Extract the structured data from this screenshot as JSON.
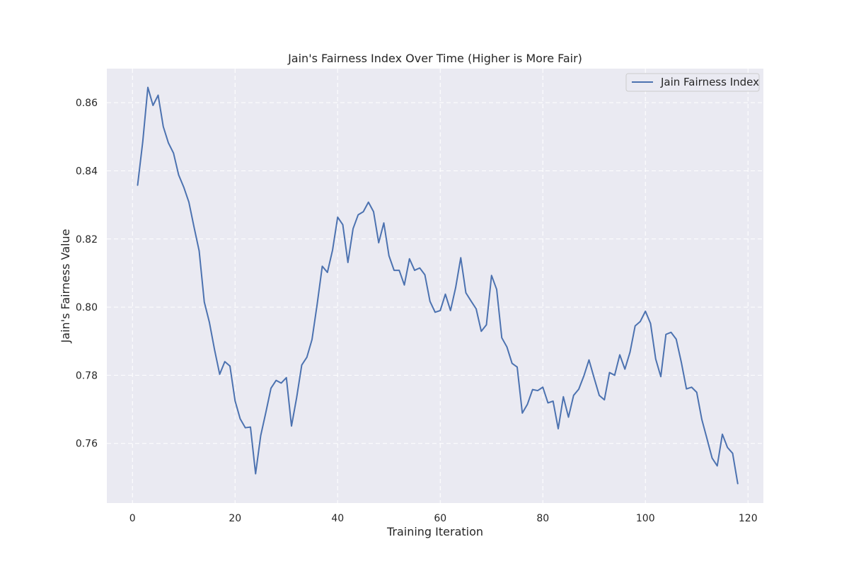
{
  "chart_data": {
    "type": "line",
    "title": "Jain's Fairness Index Over Time (Higher is More Fair)",
    "xlabel": "Training Iteration",
    "ylabel": "Jain's Fairness Value",
    "xlim": [
      -5,
      123
    ],
    "ylim": [
      0.7425,
      0.87
    ],
    "xticks": [
      0,
      20,
      40,
      60,
      80,
      100,
      120
    ],
    "yticks": [
      0.76,
      0.78,
      0.8,
      0.82,
      0.84,
      0.86
    ],
    "ytick_labels": [
      "0.76",
      "0.78",
      "0.80",
      "0.82",
      "0.84",
      "0.86"
    ],
    "grid": true,
    "legend_position": "top-right",
    "series": [
      {
        "name": "Jain Fairness Index",
        "color": "#4c72b0",
        "x": [
          1,
          2,
          3,
          4,
          5,
          6,
          7,
          8,
          9,
          10,
          11,
          12,
          13,
          14,
          15,
          16,
          17,
          18,
          19,
          20,
          21,
          22,
          23,
          24,
          25,
          26,
          27,
          28,
          29,
          30,
          31,
          32,
          33,
          34,
          35,
          36,
          37,
          38,
          39,
          40,
          41,
          42,
          43,
          44,
          45,
          46,
          47,
          48,
          49,
          50,
          51,
          52,
          53,
          54,
          55,
          56,
          57,
          58,
          59,
          60,
          61,
          62,
          63,
          64,
          65,
          66,
          67,
          68,
          69,
          70,
          71,
          72,
          73,
          74,
          75,
          76,
          77,
          78,
          79,
          80,
          81,
          82,
          83,
          84,
          85,
          86,
          87,
          88,
          89,
          90,
          91,
          92,
          93,
          94,
          95,
          96,
          97,
          98,
          99,
          100,
          101,
          102,
          103,
          104,
          105,
          106,
          107,
          108,
          109,
          110,
          111,
          112,
          113,
          114,
          115,
          116,
          117,
          118
        ],
        "y": [
          0.8358,
          0.8485,
          0.8645,
          0.8592,
          0.8622,
          0.853,
          0.8482,
          0.8452,
          0.8388,
          0.8352,
          0.8308,
          0.8235,
          0.8165,
          0.8015,
          0.7955,
          0.7875,
          0.7803,
          0.784,
          0.7827,
          0.7725,
          0.7672,
          0.7646,
          0.7648,
          0.7511,
          0.7623,
          0.7691,
          0.7762,
          0.7785,
          0.7777,
          0.7793,
          0.7651,
          0.7734,
          0.783,
          0.7853,
          0.7905,
          0.8008,
          0.812,
          0.8102,
          0.8167,
          0.8264,
          0.8242,
          0.8131,
          0.823,
          0.8271,
          0.828,
          0.8308,
          0.828,
          0.8189,
          0.8247,
          0.8151,
          0.8108,
          0.8108,
          0.8065,
          0.8142,
          0.8108,
          0.8115,
          0.8095,
          0.8017,
          0.7985,
          0.799,
          0.8038,
          0.799,
          0.8057,
          0.8145,
          0.8042,
          0.8018,
          0.7995,
          0.7929,
          0.7948,
          0.8093,
          0.8052,
          0.791,
          0.7883,
          0.7835,
          0.7824,
          0.7689,
          0.7715,
          0.7758,
          0.7755,
          0.7765,
          0.7719,
          0.7724,
          0.7643,
          0.7737,
          0.7677,
          0.7741,
          0.7759,
          0.7798,
          0.7845,
          0.7792,
          0.7741,
          0.7728,
          0.7808,
          0.78,
          0.786,
          0.7818,
          0.7868,
          0.7945,
          0.7958,
          0.7988,
          0.7952,
          0.7848,
          0.7796,
          0.792,
          0.7926,
          0.7906,
          0.7838,
          0.776,
          0.7765,
          0.775,
          0.767,
          0.7614,
          0.7557,
          0.7534,
          0.7627,
          0.7588,
          0.7571,
          0.7482
        ]
      }
    ]
  }
}
